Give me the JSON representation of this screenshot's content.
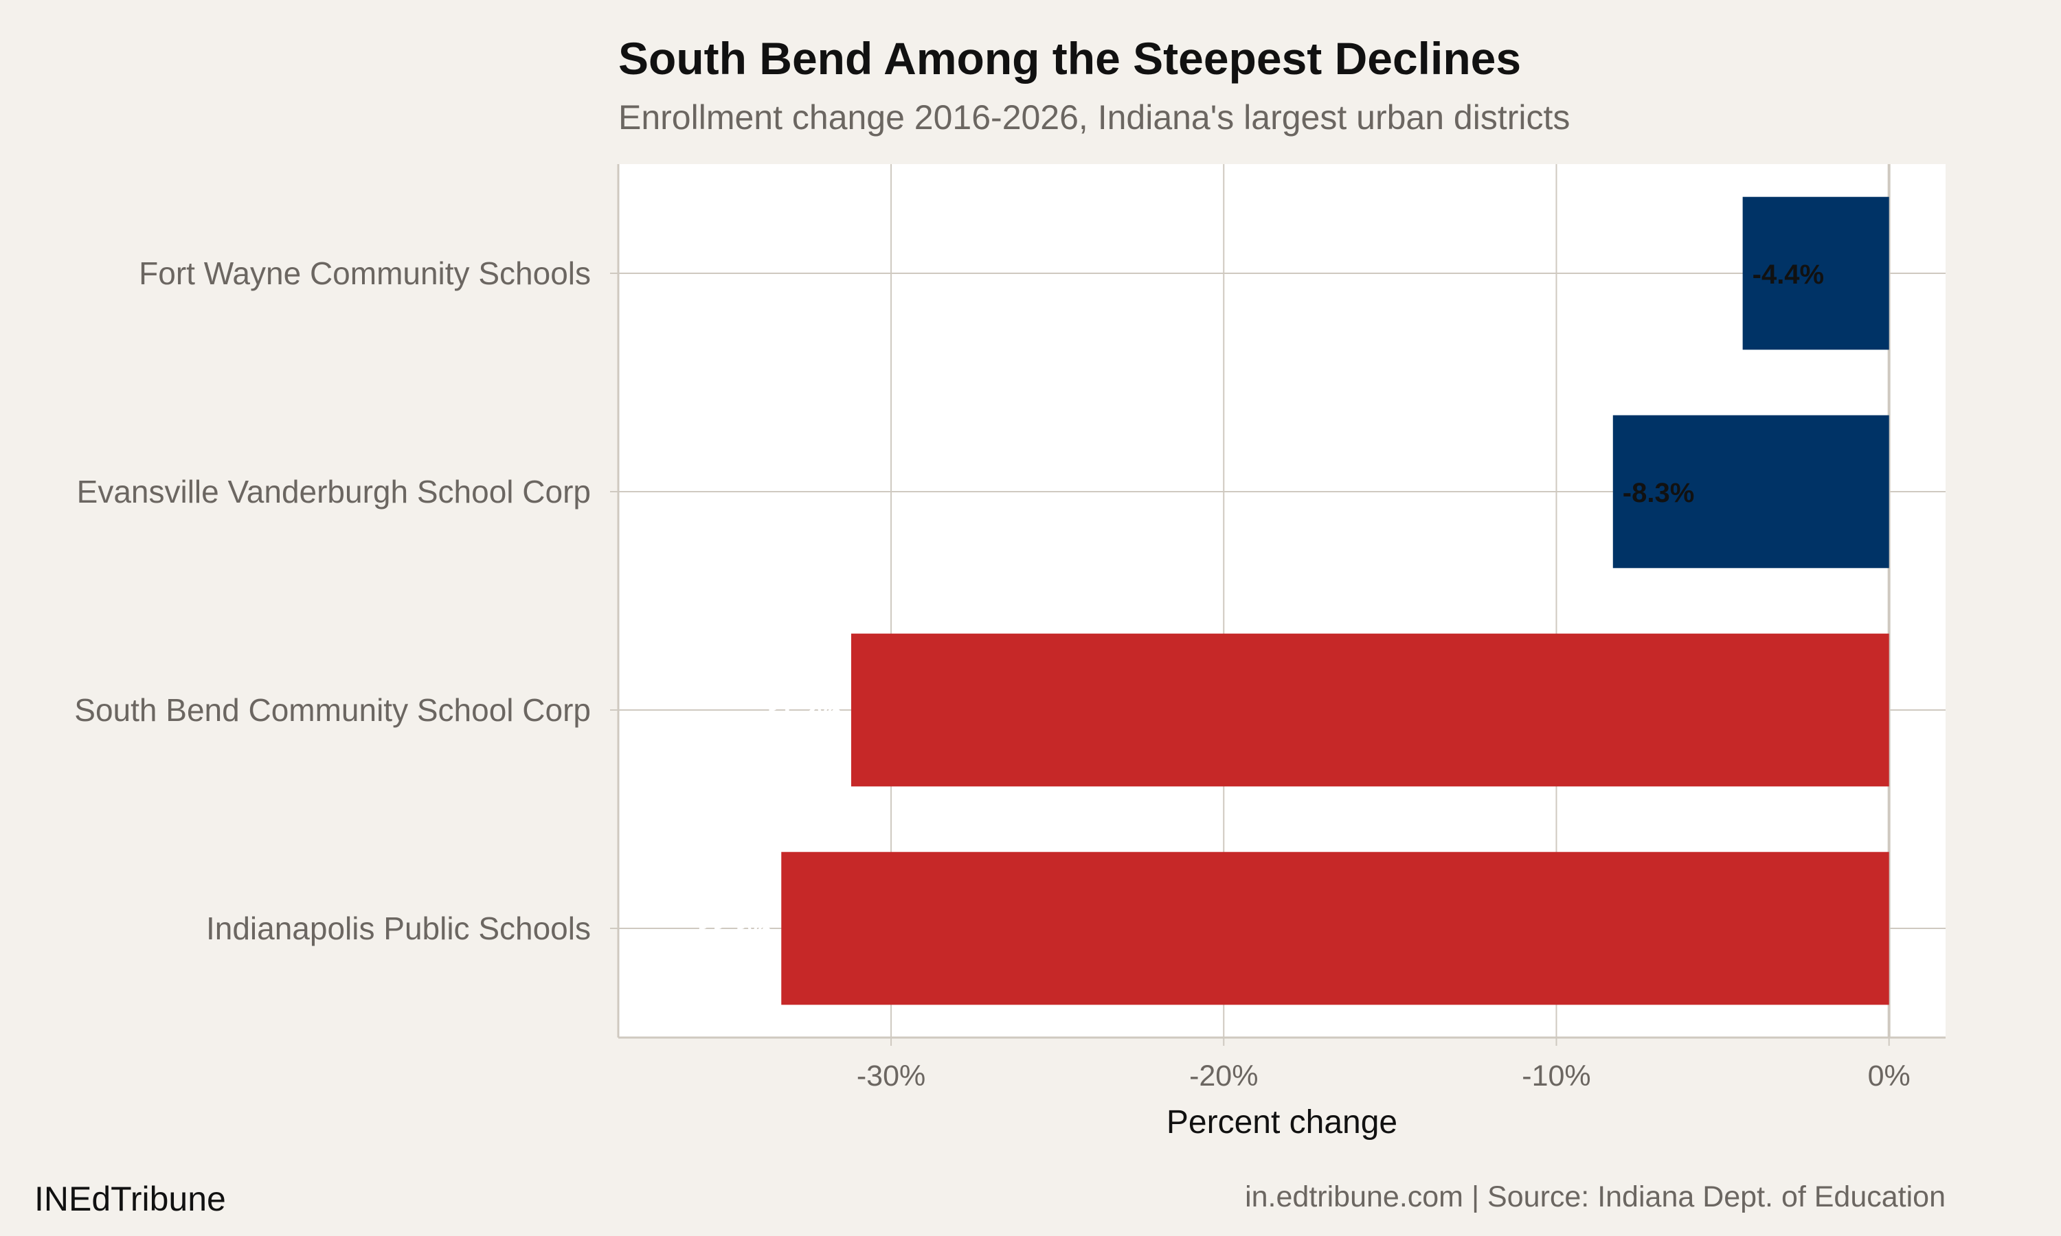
{
  "brand": "INEdTribune",
  "caption": "in.edtribune.com | Source: Indiana Dept. of Education",
  "colors": {
    "background": "#f4f1ec",
    "panel": "#ffffff",
    "grid": "#cfc9c0",
    "highlight": "#c62828",
    "other": "#003366"
  },
  "chart_data": {
    "type": "bar",
    "orientation": "horizontal",
    "title": "South Bend Among the Steepest Declines",
    "subtitle": "Enrollment change 2016-2026, Indiana's largest urban districts",
    "xlabel": "Percent change",
    "ylabel": "",
    "xlim": [
      -38.2,
      1.7
    ],
    "xticks": [
      -30,
      -20,
      -10,
      0
    ],
    "xtick_labels": [
      "-30%",
      "-20%",
      "-10%",
      "0%"
    ],
    "grid": true,
    "categories": [
      "Fort Wayne Community Schools",
      "Evansville Vanderburgh School Corp",
      "South Bend Community School Corp",
      "Indianapolis Public Schools"
    ],
    "values": [
      -4.4,
      -8.3,
      -31.2,
      -33.3
    ],
    "data_labels": [
      "-4.4%",
      "-8.3%",
      "-31.2%",
      "-33.3%"
    ],
    "bar_colors": [
      "#003366",
      "#003366",
      "#c62828",
      "#c62828"
    ],
    "label_colors": [
      "#111111",
      "#111111",
      "#ffffff",
      "#ffffff"
    ]
  }
}
